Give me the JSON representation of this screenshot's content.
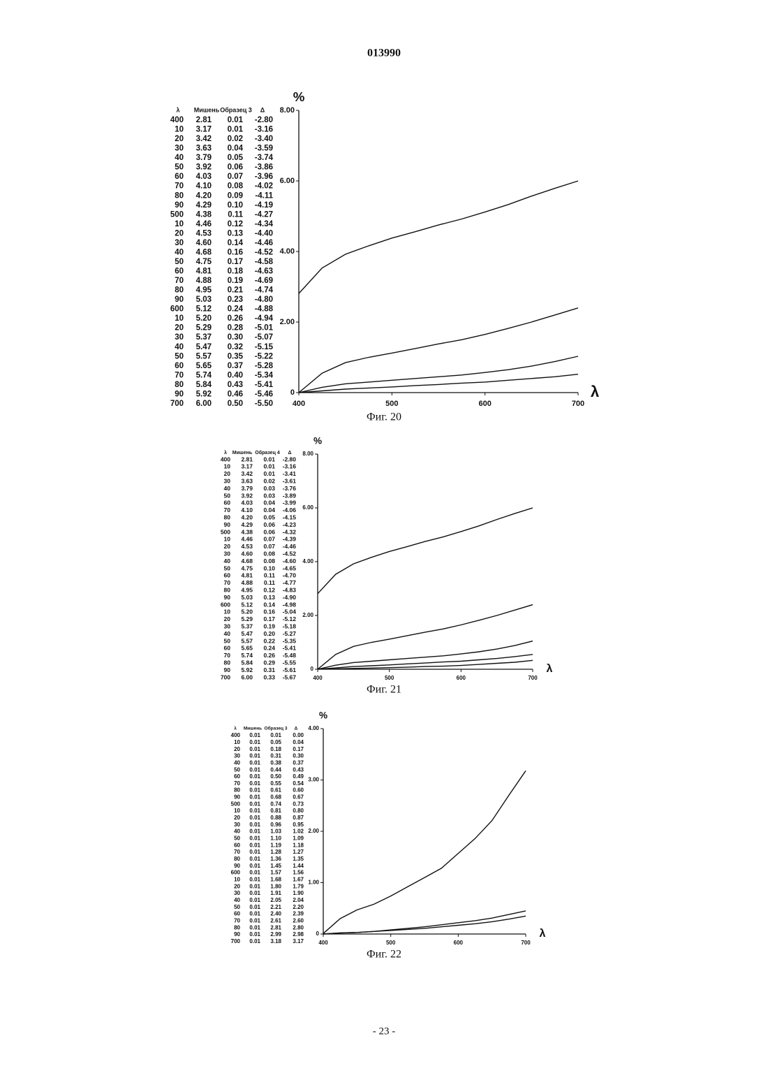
{
  "header": "013990",
  "footer": "- 23 -",
  "captions": [
    "Фиг. 20",
    "Фиг. 21",
    "Фиг. 22"
  ],
  "tables": [
    {
      "columns": [
        "λ",
        "Мишень",
        "Образец 3",
        "Δ"
      ],
      "rows": [
        [
          "400",
          "2.81",
          "0.01",
          "-2.80"
        ],
        [
          "10",
          "3.17",
          "0.01",
          "-3.16"
        ],
        [
          "20",
          "3.42",
          "0.02",
          "-3.40"
        ],
        [
          "30",
          "3.63",
          "0.04",
          "-3.59"
        ],
        [
          "40",
          "3.79",
          "0.05",
          "-3.74"
        ],
        [
          "50",
          "3.92",
          "0.06",
          "-3.86"
        ],
        [
          "60",
          "4.03",
          "0.07",
          "-3.96"
        ],
        [
          "70",
          "4.10",
          "0.08",
          "-4.02"
        ],
        [
          "80",
          "4.20",
          "0.09",
          "-4.11"
        ],
        [
          "90",
          "4.29",
          "0.10",
          "-4.19"
        ],
        [
          "500",
          "4.38",
          "0.11",
          "-4.27"
        ],
        [
          "10",
          "4.46",
          "0.12",
          "-4.34"
        ],
        [
          "20",
          "4.53",
          "0.13",
          "-4.40"
        ],
        [
          "30",
          "4.60",
          "0.14",
          "-4.46"
        ],
        [
          "40",
          "4.68",
          "0.16",
          "-4.52"
        ],
        [
          "50",
          "4.75",
          "0.17",
          "-4.58"
        ],
        [
          "60",
          "4.81",
          "0.18",
          "-4.63"
        ],
        [
          "70",
          "4.88",
          "0.19",
          "-4.69"
        ],
        [
          "80",
          "4.95",
          "0.21",
          "-4.74"
        ],
        [
          "90",
          "5.03",
          "0.23",
          "-4.80"
        ],
        [
          "600",
          "5.12",
          "0.24",
          "-4.88"
        ],
        [
          "10",
          "5.20",
          "0.26",
          "-4.94"
        ],
        [
          "20",
          "5.29",
          "0.28",
          "-5.01"
        ],
        [
          "30",
          "5.37",
          "0.30",
          "-5.07"
        ],
        [
          "40",
          "5.47",
          "0.32",
          "-5.15"
        ],
        [
          "50",
          "5.57",
          "0.35",
          "-5.22"
        ],
        [
          "60",
          "5.65",
          "0.37",
          "-5.28"
        ],
        [
          "70",
          "5.74",
          "0.40",
          "-5.34"
        ],
        [
          "80",
          "5.84",
          "0.43",
          "-5.41"
        ],
        [
          "90",
          "5.92",
          "0.46",
          "-5.46"
        ],
        [
          "700",
          "6.00",
          "0.50",
          "-5.50"
        ]
      ]
    },
    {
      "columns": [
        "λ",
        "Мишень",
        "Образец 4",
        "Δ"
      ],
      "rows": [
        [
          "400",
          "2.81",
          "0.01",
          "-2.80"
        ],
        [
          "10",
          "3.17",
          "0.01",
          "-3.16"
        ],
        [
          "20",
          "3.42",
          "0.01",
          "-3.41"
        ],
        [
          "30",
          "3.63",
          "0.02",
          "-3.61"
        ],
        [
          "40",
          "3.79",
          "0.03",
          "-3.76"
        ],
        [
          "50",
          "3.92",
          "0.03",
          "-3.89"
        ],
        [
          "60",
          "4.03",
          "0.04",
          "-3.99"
        ],
        [
          "70",
          "4.10",
          "0.04",
          "-4.06"
        ],
        [
          "80",
          "4.20",
          "0.05",
          "-4.15"
        ],
        [
          "90",
          "4.29",
          "0.06",
          "-4.23"
        ],
        [
          "500",
          "4.38",
          "0.06",
          "-4.32"
        ],
        [
          "10",
          "4.46",
          "0.07",
          "-4.39"
        ],
        [
          "20",
          "4.53",
          "0.07",
          "-4.46"
        ],
        [
          "30",
          "4.60",
          "0.08",
          "-4.52"
        ],
        [
          "40",
          "4.68",
          "0.08",
          "-4.60"
        ],
        [
          "50",
          "4.75",
          "0.10",
          "-4.65"
        ],
        [
          "60",
          "4.81",
          "0.11",
          "-4.70"
        ],
        [
          "70",
          "4.88",
          "0.11",
          "-4.77"
        ],
        [
          "80",
          "4.95",
          "0.12",
          "-4.83"
        ],
        [
          "90",
          "5.03",
          "0.13",
          "-4.90"
        ],
        [
          "600",
          "5.12",
          "0.14",
          "-4.98"
        ],
        [
          "10",
          "5.20",
          "0.16",
          "-5.04"
        ],
        [
          "20",
          "5.29",
          "0.17",
          "-5.12"
        ],
        [
          "30",
          "5.37",
          "0.19",
          "-5.18"
        ],
        [
          "40",
          "5.47",
          "0.20",
          "-5.27"
        ],
        [
          "50",
          "5.57",
          "0.22",
          "-5.35"
        ],
        [
          "60",
          "5.65",
          "0.24",
          "-5.41"
        ],
        [
          "70",
          "5.74",
          "0.26",
          "-5.48"
        ],
        [
          "80",
          "5.84",
          "0.29",
          "-5.55"
        ],
        [
          "90",
          "5.92",
          "0.31",
          "-5.61"
        ],
        [
          "700",
          "6.00",
          "0.33",
          "-5.67"
        ]
      ]
    },
    {
      "columns": [
        "λ",
        "Мишень",
        "Образец 3",
        "Δ"
      ],
      "rows": [
        [
          "400",
          "0.01",
          "0.01",
          "0.00"
        ],
        [
          "10",
          "0.01",
          "0.05",
          "0.04"
        ],
        [
          "20",
          "0.01",
          "0.18",
          "0.17"
        ],
        [
          "30",
          "0.01",
          "0.31",
          "0.30"
        ],
        [
          "40",
          "0.01",
          "0.38",
          "0.37"
        ],
        [
          "50",
          "0.01",
          "0.44",
          "0.43"
        ],
        [
          "60",
          "0.01",
          "0.50",
          "0.49"
        ],
        [
          "70",
          "0.01",
          "0.55",
          "0.54"
        ],
        [
          "80",
          "0.01",
          "0.61",
          "0.60"
        ],
        [
          "90",
          "0.01",
          "0.68",
          "0.67"
        ],
        [
          "500",
          "0.01",
          "0.74",
          "0.73"
        ],
        [
          "10",
          "0.01",
          "0.81",
          "0.80"
        ],
        [
          "20",
          "0.01",
          "0.88",
          "0.87"
        ],
        [
          "30",
          "0.01",
          "0.96",
          "0.95"
        ],
        [
          "40",
          "0.01",
          "1.03",
          "1.02"
        ],
        [
          "50",
          "0.01",
          "1.10",
          "1.09"
        ],
        [
          "60",
          "0.01",
          "1.19",
          "1.18"
        ],
        [
          "70",
          "0.01",
          "1.28",
          "1.27"
        ],
        [
          "80",
          "0.01",
          "1.36",
          "1.35"
        ],
        [
          "90",
          "0.01",
          "1.45",
          "1.44"
        ],
        [
          "600",
          "0.01",
          "1.57",
          "1.56"
        ],
        [
          "10",
          "0.01",
          "1.68",
          "1.67"
        ],
        [
          "20",
          "0.01",
          "1.80",
          "1.79"
        ],
        [
          "30",
          "0.01",
          "1.91",
          "1.90"
        ],
        [
          "40",
          "0.01",
          "2.05",
          "2.04"
        ],
        [
          "50",
          "0.01",
          "2.21",
          "2.20"
        ],
        [
          "60",
          "0.01",
          "2.40",
          "2.39"
        ],
        [
          "70",
          "0.01",
          "2.61",
          "2.60"
        ],
        [
          "80",
          "0.01",
          "2.81",
          "2.80"
        ],
        [
          "90",
          "0.01",
          "2.99",
          "2.98"
        ],
        [
          "700",
          "0.01",
          "3.18",
          "3.17"
        ]
      ]
    }
  ],
  "chart_data": [
    {
      "type": "line",
      "y_label": "%",
      "x_label": "λ",
      "x": [
        400,
        425,
        450,
        475,
        500,
        525,
        550,
        575,
        600,
        625,
        650,
        675,
        700
      ],
      "xlim": [
        400,
        700
      ],
      "xticks": [
        400,
        500,
        600,
        700
      ],
      "ylim": [
        0,
        8
      ],
      "yticks": [
        0,
        {
          "value": 2,
          "label": "2.00"
        },
        {
          "value": 4,
          "label": "4.00"
        },
        {
          "value": 6,
          "label": "6.00"
        },
        {
          "value": 8,
          "label": "8.00"
        }
      ],
      "series": [
        {
          "color": "#111",
          "values": [
            2.81,
            3.53,
            3.92,
            4.16,
            4.38,
            4.56,
            4.75,
            4.92,
            5.12,
            5.33,
            5.57,
            5.79,
            6.0
          ]
        },
        {
          "color": "#111",
          "values": [
            0,
            0.55,
            0.85,
            1.0,
            1.12,
            1.25,
            1.38,
            1.5,
            1.65,
            1.82,
            2.0,
            2.2,
            2.4
          ]
        },
        {
          "color": "#111",
          "values": [
            0,
            0.15,
            0.25,
            0.3,
            0.35,
            0.4,
            0.45,
            0.5,
            0.57,
            0.65,
            0.75,
            0.88,
            1.03
          ]
        },
        {
          "color": "#111",
          "values": [
            0,
            0.05,
            0.1,
            0.13,
            0.16,
            0.2,
            0.23,
            0.27,
            0.3,
            0.35,
            0.4,
            0.45,
            0.52
          ]
        }
      ]
    },
    {
      "type": "line",
      "y_label": "%",
      "x_label": "λ",
      "x": [
        400,
        425,
        450,
        475,
        500,
        525,
        550,
        575,
        600,
        625,
        650,
        675,
        700
      ],
      "xlim": [
        400,
        700
      ],
      "xticks": [
        400,
        500,
        600,
        700
      ],
      "ylim": [
        0,
        8
      ],
      "yticks": [
        0,
        {
          "value": 2,
          "label": "2.00"
        },
        {
          "value": 4,
          "label": "4.00"
        },
        {
          "value": 6,
          "label": "6.00"
        },
        {
          "value": 8,
          "label": "8.00"
        }
      ],
      "series": [
        {
          "color": "#111",
          "values": [
            2.81,
            3.53,
            3.92,
            4.16,
            4.38,
            4.56,
            4.75,
            4.92,
            5.12,
            5.33,
            5.57,
            5.79,
            6.0
          ]
        },
        {
          "color": "#111",
          "values": [
            0,
            0.55,
            0.85,
            1.0,
            1.12,
            1.25,
            1.38,
            1.5,
            1.65,
            1.82,
            2.0,
            2.2,
            2.4
          ]
        },
        {
          "color": "#111",
          "values": [
            0,
            0.15,
            0.25,
            0.3,
            0.35,
            0.4,
            0.45,
            0.5,
            0.57,
            0.65,
            0.75,
            0.88,
            1.05
          ]
        },
        {
          "color": "#111",
          "values": [
            0,
            0.05,
            0.1,
            0.13,
            0.16,
            0.2,
            0.23,
            0.27,
            0.3,
            0.35,
            0.4,
            0.47,
            0.55
          ]
        },
        {
          "color": "#111",
          "values": [
            0.01,
            0.015,
            0.03,
            0.045,
            0.06,
            0.075,
            0.1,
            0.115,
            0.14,
            0.18,
            0.22,
            0.26,
            0.33
          ]
        }
      ]
    },
    {
      "type": "line",
      "y_label": "%",
      "x_label": "λ",
      "x": [
        400,
        425,
        450,
        475,
        500,
        525,
        550,
        575,
        600,
        625,
        650,
        675,
        700
      ],
      "xlim": [
        400,
        700
      ],
      "xticks": [
        400,
        500,
        600,
        700
      ],
      "ylim": [
        0,
        4
      ],
      "yticks": [
        0,
        {
          "value": 1,
          "label": "1.00"
        },
        {
          "value": 2,
          "label": "2.00"
        },
        {
          "value": 3,
          "label": "3.00"
        },
        {
          "value": 4,
          "label": "4.00"
        }
      ],
      "series": [
        {
          "color": "#111",
          "values": [
            0.01,
            0.3,
            0.47,
            0.58,
            0.74,
            0.92,
            1.1,
            1.28,
            1.57,
            1.86,
            2.21,
            2.7,
            3.18
          ]
        },
        {
          "color": "#111",
          "values": [
            0,
            0.02,
            0.03,
            0.05,
            0.08,
            0.11,
            0.14,
            0.18,
            0.22,
            0.26,
            0.31,
            0.38,
            0.45
          ]
        },
        {
          "color": "#111",
          "values": [
            0,
            0.02,
            0.03,
            0.05,
            0.07,
            0.09,
            0.11,
            0.14,
            0.17,
            0.2,
            0.24,
            0.29,
            0.35
          ]
        }
      ]
    }
  ]
}
